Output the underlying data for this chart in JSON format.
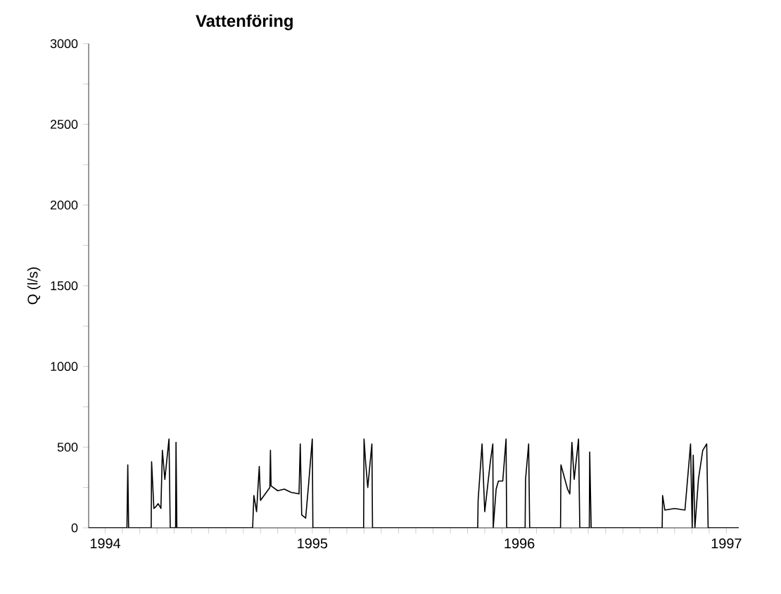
{
  "chart_data": {
    "type": "line",
    "title": "Vattenföring",
    "ylabel": "Q (l/s)",
    "color": "#000000",
    "xlim": [
      1994.42,
      1997.56
    ],
    "ylim": [
      0,
      3000
    ],
    "yticks": [
      0,
      {
        "value": 250,
        "label": null
      },
      500,
      {
        "value": 750,
        "label": null
      },
      1000,
      {
        "value": 1250,
        "label": null
      },
      1500,
      {
        "value": 1750,
        "label": null
      },
      2000,
      {
        "value": 2250,
        "label": null
      },
      2500,
      {
        "value": 2750,
        "label": null
      },
      3000
    ],
    "xticks": [
      {
        "value": 1994.5,
        "label": "1994"
      },
      {
        "value": 1994.583,
        "label": null
      },
      {
        "value": 1994.667,
        "label": null
      },
      {
        "value": 1994.75,
        "label": null
      },
      {
        "value": 1994.833,
        "label": null
      },
      {
        "value": 1994.917,
        "label": null
      },
      {
        "value": 1995,
        "label": null
      },
      {
        "value": 1995.083,
        "label": null
      },
      {
        "value": 1995.167,
        "label": null
      },
      {
        "value": 1995.25,
        "label": null
      },
      {
        "value": 1995.333,
        "label": null
      },
      {
        "value": 1995.417,
        "label": null
      },
      {
        "value": 1995.5,
        "label": "1995"
      },
      {
        "value": 1995.583,
        "label": null
      },
      {
        "value": 1995.667,
        "label": null
      },
      {
        "value": 1995.75,
        "label": null
      },
      {
        "value": 1995.833,
        "label": null
      },
      {
        "value": 1995.917,
        "label": null
      },
      {
        "value": 1996,
        "label": null
      },
      {
        "value": 1996.083,
        "label": null
      },
      {
        "value": 1996.167,
        "label": null
      },
      {
        "value": 1996.25,
        "label": null
      },
      {
        "value": 1996.333,
        "label": null
      },
      {
        "value": 1996.417,
        "label": null
      },
      {
        "value": 1996.5,
        "label": "1996"
      },
      {
        "value": 1996.583,
        "label": null
      },
      {
        "value": 1996.667,
        "label": null
      },
      {
        "value": 1996.75,
        "label": null
      },
      {
        "value": 1996.833,
        "label": null
      },
      {
        "value": 1996.917,
        "label": null
      },
      {
        "value": 1997,
        "label": null
      },
      {
        "value": 1997.083,
        "label": null
      },
      {
        "value": 1997.167,
        "label": null
      },
      {
        "value": 1997.25,
        "label": null
      },
      {
        "value": 1997.333,
        "label": null
      },
      {
        "value": 1997.417,
        "label": null
      },
      {
        "value": 1997.5,
        "label": "1997"
      }
    ],
    "marker": "none",
    "line_style": "solid",
    "x": [
      1994.42,
      1994.605,
      1994.609,
      1994.613,
      1994.722,
      1994.724,
      1994.735,
      1994.744,
      1994.756,
      1994.769,
      1994.776,
      1994.788,
      1994.808,
      1994.814,
      1994.84,
      1994.842,
      1994.846,
      1995.212,
      1995.218,
      1995.231,
      1995.244,
      1995.25,
      1995.295,
      1995.298,
      1995.301,
      1995.333,
      1995.365,
      1995.397,
      1995.436,
      1995.442,
      1995.449,
      1995.468,
      1995.481,
      1995.5,
      1995.503,
      1995.748,
      1995.75,
      1995.758,
      1995.768,
      1995.788,
      1995.791,
      1996.299,
      1996.301,
      1996.32,
      1996.333,
      1996.361,
      1996.372,
      1996.374,
      1996.388,
      1996.399,
      1996.42,
      1996.436,
      1996.439,
      1996.528,
      1996.53,
      1996.545,
      1996.55,
      1996.699,
      1996.701,
      1996.733,
      1996.744,
      1996.754,
      1996.765,
      1996.786,
      1996.792,
      1996.838,
      1996.84,
      1996.847,
      1997.19,
      1997.192,
      1997.203,
      1997.25,
      1997.3,
      1997.327,
      1997.335,
      1997.34,
      1997.348,
      1997.365,
      1997.386,
      1997.405,
      1997.412,
      1997.56
    ],
    "values": [
      0,
      0,
      390,
      0,
      0,
      410,
      120,
      130,
      150,
      120,
      480,
      300,
      550,
      0,
      0,
      530,
      0,
      0,
      200,
      100,
      380,
      170,
      250,
      480,
      260,
      230,
      240,
      220,
      210,
      520,
      80,
      60,
      250,
      550,
      0,
      0,
      550,
      400,
      250,
      520,
      0,
      0,
      170,
      520,
      100,
      420,
      520,
      0,
      240,
      290,
      290,
      550,
      0,
      0,
      300,
      520,
      0,
      0,
      390,
      240,
      210,
      530,
      300,
      550,
      0,
      0,
      470,
      0,
      0,
      200,
      110,
      120,
      110,
      520,
      0,
      450,
      0,
      300,
      480,
      520,
      0,
      0
    ]
  }
}
